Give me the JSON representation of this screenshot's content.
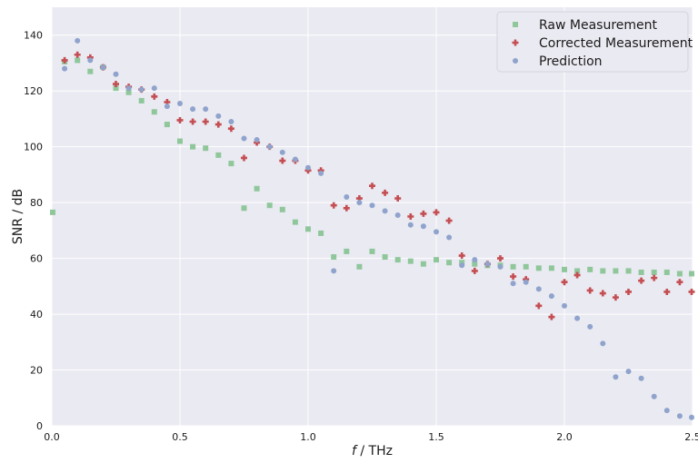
{
  "chart_data": {
    "type": "scatter",
    "title": "",
    "xlabel_italic": "f",
    "xlabel_rest": " / THz",
    "ylabel": "SNR / dB",
    "xlim": [
      0,
      2.5
    ],
    "ylim": [
      0,
      150
    ],
    "x_ticks": [
      0,
      0.5,
      1.0,
      1.5,
      2.0,
      2.5
    ],
    "x_tick_labels": [
      "0.0",
      "0.5",
      "1.0",
      "1.5",
      "2.0",
      "2.5"
    ],
    "y_ticks": [
      0,
      20,
      40,
      60,
      80,
      100,
      120,
      140
    ],
    "y_tick_labels": [
      "0",
      "20",
      "40",
      "60",
      "80",
      "100",
      "120",
      "140"
    ],
    "grid": true,
    "legend_position": "top-right",
    "series": [
      {
        "name": "Raw Measurement",
        "marker": "square",
        "color": "#8fc79b",
        "points": [
          [
            0.0,
            76.5
          ],
          [
            0.05,
            130.5
          ],
          [
            0.1,
            131
          ],
          [
            0.15,
            127
          ],
          [
            0.2,
            128.5
          ],
          [
            0.25,
            121
          ],
          [
            0.3,
            119.5
          ],
          [
            0.35,
            116.5
          ],
          [
            0.4,
            112.5
          ],
          [
            0.45,
            108
          ],
          [
            0.5,
            102
          ],
          [
            0.55,
            100
          ],
          [
            0.6,
            99.5
          ],
          [
            0.65,
            97
          ],
          [
            0.7,
            94
          ],
          [
            0.75,
            78
          ],
          [
            0.8,
            85
          ],
          [
            0.85,
            79
          ],
          [
            0.9,
            77.5
          ],
          [
            0.95,
            73
          ],
          [
            1.0,
            70.5
          ],
          [
            1.05,
            69
          ],
          [
            1.1,
            60.5
          ],
          [
            1.15,
            62.5
          ],
          [
            1.2,
            57
          ],
          [
            1.25,
            62.5
          ],
          [
            1.3,
            60.5
          ],
          [
            1.35,
            59.5
          ],
          [
            1.4,
            59
          ],
          [
            1.45,
            58
          ],
          [
            1.5,
            59.5
          ],
          [
            1.55,
            58.5
          ],
          [
            1.6,
            58.5
          ],
          [
            1.65,
            58
          ],
          [
            1.7,
            57.5
          ],
          [
            1.75,
            57.5
          ],
          [
            1.8,
            57
          ],
          [
            1.85,
            57
          ],
          [
            1.9,
            56.5
          ],
          [
            1.95,
            56.5
          ],
          [
            2.0,
            56
          ],
          [
            2.05,
            55.5
          ],
          [
            2.1,
            56
          ],
          [
            2.15,
            55.5
          ],
          [
            2.2,
            55.5
          ],
          [
            2.25,
            55.5
          ],
          [
            2.3,
            55
          ],
          [
            2.35,
            55
          ],
          [
            2.4,
            55
          ],
          [
            2.45,
            54.5
          ],
          [
            2.5,
            54.5
          ]
        ]
      },
      {
        "name": "Corrected Measurement",
        "marker": "plus",
        "color": "#c44e52",
        "points": [
          [
            0.05,
            131
          ],
          [
            0.1,
            133
          ],
          [
            0.15,
            132
          ],
          [
            0.2,
            128.5
          ],
          [
            0.25,
            122.5
          ],
          [
            0.3,
            121.5
          ],
          [
            0.35,
            120.5
          ],
          [
            0.4,
            118
          ],
          [
            0.45,
            116
          ],
          [
            0.5,
            109.5
          ],
          [
            0.55,
            109
          ],
          [
            0.6,
            109
          ],
          [
            0.65,
            108
          ],
          [
            0.7,
            106.5
          ],
          [
            0.75,
            96
          ],
          [
            0.8,
            101.5
          ],
          [
            0.85,
            100
          ],
          [
            0.9,
            95
          ],
          [
            0.95,
            95
          ],
          [
            1.0,
            91.5
          ],
          [
            1.05,
            91.5
          ],
          [
            1.1,
            79
          ],
          [
            1.15,
            78
          ],
          [
            1.2,
            81.5
          ],
          [
            1.25,
            86
          ],
          [
            1.3,
            83.5
          ],
          [
            1.35,
            81.5
          ],
          [
            1.4,
            75
          ],
          [
            1.45,
            76
          ],
          [
            1.5,
            76.5
          ],
          [
            1.55,
            73.5
          ],
          [
            1.6,
            61
          ],
          [
            1.65,
            55.5
          ],
          [
            1.7,
            58
          ],
          [
            1.75,
            60
          ],
          [
            1.8,
            53.5
          ],
          [
            1.85,
            52.5
          ],
          [
            1.9,
            43
          ],
          [
            1.95,
            39
          ],
          [
            2.0,
            51.5
          ],
          [
            2.05,
            54
          ],
          [
            2.1,
            48.5
          ],
          [
            2.15,
            47.5
          ],
          [
            2.2,
            46
          ],
          [
            2.25,
            48
          ],
          [
            2.3,
            52
          ],
          [
            2.35,
            53
          ],
          [
            2.4,
            48
          ],
          [
            2.45,
            51.5
          ],
          [
            2.5,
            48
          ]
        ]
      },
      {
        "name": "Prediction",
        "marker": "circle",
        "color": "#8fa3cc",
        "points": [
          [
            0.05,
            128
          ],
          [
            0.1,
            138
          ],
          [
            0.15,
            131
          ],
          [
            0.2,
            128.5
          ],
          [
            0.25,
            126
          ],
          [
            0.3,
            121
          ],
          [
            0.35,
            120.5
          ],
          [
            0.4,
            121
          ],
          [
            0.45,
            114.5
          ],
          [
            0.5,
            115.5
          ],
          [
            0.55,
            113.5
          ],
          [
            0.6,
            113.5
          ],
          [
            0.65,
            111
          ],
          [
            0.7,
            109
          ],
          [
            0.75,
            103
          ],
          [
            0.8,
            102.5
          ],
          [
            0.85,
            100
          ],
          [
            0.9,
            98
          ],
          [
            0.95,
            95.5
          ],
          [
            1.0,
            92.5
          ],
          [
            1.05,
            90.5
          ],
          [
            1.1,
            55.5
          ],
          [
            1.15,
            82
          ],
          [
            1.2,
            80
          ],
          [
            1.25,
            79
          ],
          [
            1.3,
            77
          ],
          [
            1.35,
            75.5
          ],
          [
            1.4,
            72
          ],
          [
            1.45,
            71.5
          ],
          [
            1.5,
            69.5
          ],
          [
            1.55,
            67.5
          ],
          [
            1.6,
            57.5
          ],
          [
            1.65,
            59.5
          ],
          [
            1.7,
            58
          ],
          [
            1.75,
            57
          ],
          [
            1.8,
            51
          ],
          [
            1.85,
            51.5
          ],
          [
            1.9,
            49
          ],
          [
            1.95,
            46.5
          ],
          [
            2.0,
            43
          ],
          [
            2.05,
            38.5
          ],
          [
            2.1,
            35.5
          ],
          [
            2.15,
            29.5
          ],
          [
            2.2,
            17.5
          ],
          [
            2.25,
            19.5
          ],
          [
            2.3,
            17
          ],
          [
            2.35,
            10.5
          ],
          [
            2.4,
            5.5
          ],
          [
            2.45,
            3.5
          ],
          [
            2.5,
            3
          ]
        ]
      }
    ]
  }
}
